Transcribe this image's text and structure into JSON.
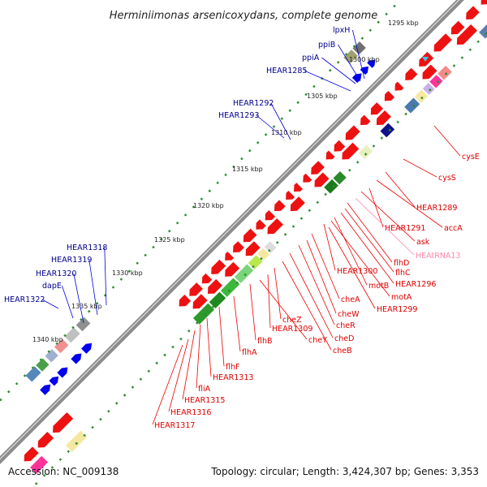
{
  "title": "Herminiimonas arsenicoxydans, complete genome",
  "accession": "Accession: NC_009138",
  "topology": "Topology: circular; Length: 3,424,307 bp; Genes: 3,353",
  "colors": {
    "backbone": "#8c8c8c",
    "tick": "#2e8b2e",
    "forward_gene": "#0000ee",
    "reverse_gene": "#ee0000",
    "forward_label": "#00008b",
    "reverse_label": "#dd0000",
    "rna_label": "#ff88aa"
  },
  "scale_ticks": [
    "1295 kbp",
    "1300 kbp",
    "1305 kbp",
    "1310 kbp",
    "1315 kbp",
    "1320 kbp",
    "1325 kbp",
    "1330 kbp",
    "1335 kbp",
    "1340 kbp"
  ],
  "forward_genes": [
    {
      "name": "HEAR1322"
    },
    {
      "name": "dapE"
    },
    {
      "name": "HEAR1320"
    },
    {
      "name": "HEAR1319"
    },
    {
      "name": "HEAR1318"
    },
    {
      "name": "HEAR1293"
    },
    {
      "name": "HEAR1292"
    },
    {
      "name": "HEAR1285"
    },
    {
      "name": "ppiA"
    },
    {
      "name": "ppiB"
    },
    {
      "name": "lpxH"
    }
  ],
  "reverse_genes": [
    {
      "name": "cysE"
    },
    {
      "name": "cysS"
    },
    {
      "name": "HEAR1289"
    },
    {
      "name": "accA"
    },
    {
      "name": "HEAR1291"
    },
    {
      "name": "ask"
    },
    {
      "name": "HEAtRNA13",
      "rna": true
    },
    {
      "name": "flhD"
    },
    {
      "name": "flhC"
    },
    {
      "name": "HEAR1296"
    },
    {
      "name": "HEAR1300"
    },
    {
      "name": "motB"
    },
    {
      "name": "motA"
    },
    {
      "name": "HEAR1299"
    },
    {
      "name": "cheA"
    },
    {
      "name": "cheW"
    },
    {
      "name": "cheR"
    },
    {
      "name": "cheD"
    },
    {
      "name": "cheB"
    },
    {
      "name": "cheZ"
    },
    {
      "name": "HEAR1309"
    },
    {
      "name": "cheY"
    },
    {
      "name": "flhB"
    },
    {
      "name": "flhA"
    },
    {
      "name": "flhF"
    },
    {
      "name": "HEAR1313"
    },
    {
      "name": "fliA"
    },
    {
      "name": "HEAR1315"
    },
    {
      "name": "HEAR1316"
    },
    {
      "name": "HEAR1317"
    }
  ]
}
